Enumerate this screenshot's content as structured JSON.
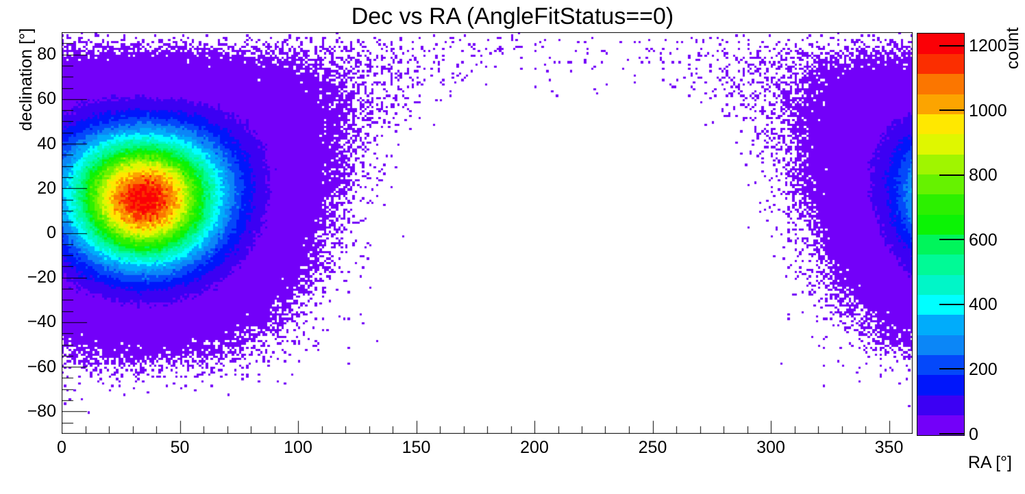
{
  "chart_data": {
    "type": "heatmap",
    "title": "Dec vs RA (AngleFitStatus==0)",
    "xlabel": "RA [°]",
    "ylabel": "declination [°]",
    "zlabel": "count",
    "xlim": [
      0,
      360
    ],
    "ylim": [
      -90,
      90
    ],
    "zlim": [
      0,
      1242
    ],
    "x_major_ticks": [
      0,
      50,
      100,
      150,
      200,
      250,
      300,
      350
    ],
    "x_minor_step": 10,
    "y_major_ticks": [
      -80,
      -60,
      -40,
      -20,
      0,
      20,
      40,
      60,
      80
    ],
    "y_minor_step": 5,
    "z_ticks": [
      0,
      200,
      400,
      600,
      800,
      1000,
      1200
    ],
    "n_color_bands": 20,
    "palette": [
      "#7300f9",
      "#3c00f3",
      "#0016fb",
      "#0448fa",
      "#0b86f7",
      "#00acfb",
      "#00ffff",
      "#00f6c8",
      "#00fa96",
      "#00f55b",
      "#0bf305",
      "#2cf000",
      "#66f200",
      "#a0f500",
      "#dff700",
      "#ffe800",
      "#fca400",
      "#fb7600",
      "#fb2e00",
      "#fb0006"
    ],
    "empty_bin_color": "#ffffff",
    "bins": {
      "nx": 360,
      "ny": 180,
      "bin_width_deg": 1,
      "bin_height_deg": 1
    },
    "hotspot": {
      "model": "gaussian-on-sphere",
      "center_ra_deg": 35,
      "center_dec_deg": 17,
      "sigma_deg": 20.5,
      "peak_count": 1220,
      "wraps_at_ra_360": true,
      "max_bin_count": 1242
    },
    "noise": {
      "type": "poisson",
      "seed": 20240601
    },
    "grid": false,
    "legend_position": "right-colorbar"
  }
}
